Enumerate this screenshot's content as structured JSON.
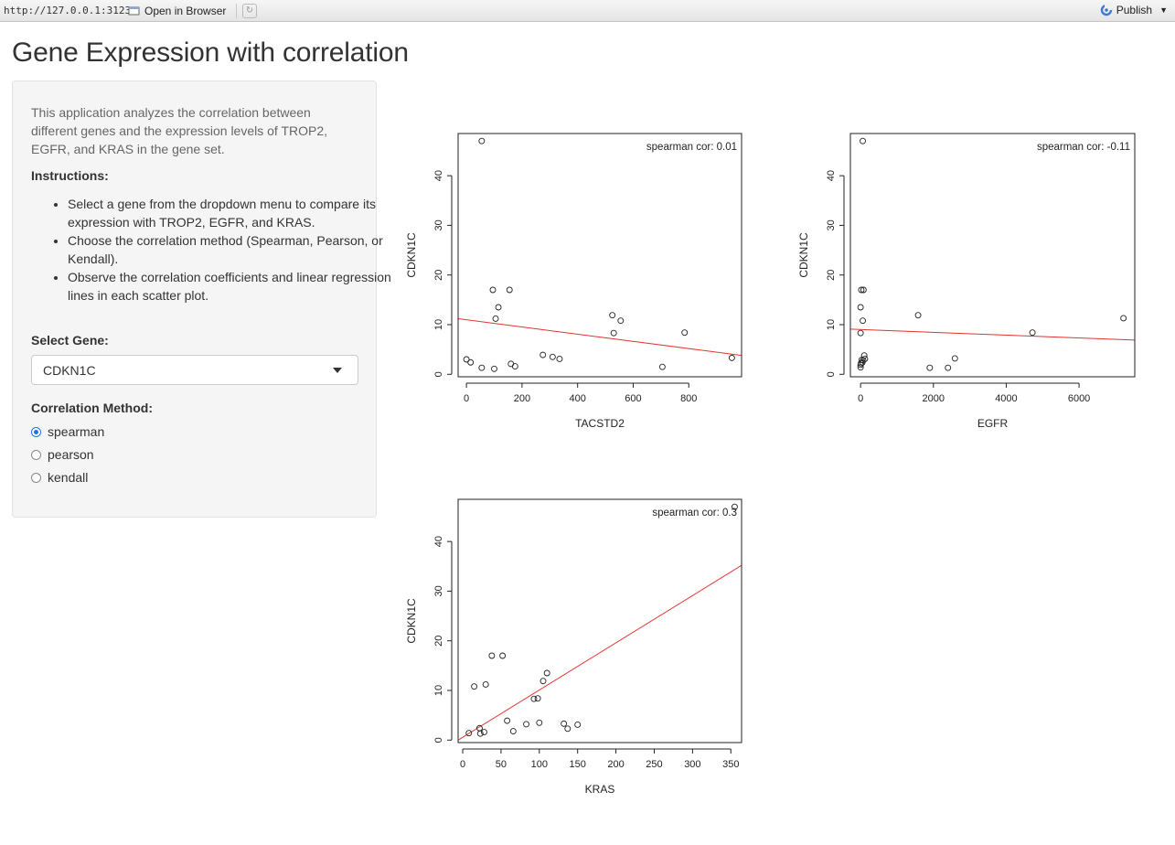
{
  "browser": {
    "url": "http://127.0.0.1:3123",
    "open_label": "Open in Browser",
    "publish_label": "Publish"
  },
  "page": {
    "title": "Gene Expression with correlation"
  },
  "sidebar": {
    "description": "This application analyzes the correlation between different genes and the expression levels of TROP2, EGFR, and KRAS in the gene set.",
    "instructions_heading": "Instructions:",
    "instructions": [
      "Select a gene from the dropdown menu to compare its expression with TROP2, EGFR, and KRAS.",
      "Choose the correlation method (Spearman, Pearson, or Kendall).",
      "Observe the correlation coefficients and linear regression lines in each scatter plot."
    ],
    "gene_label": "Select Gene:",
    "gene_value": "CDKN1C",
    "method_label": "Correlation Method:",
    "methods": [
      {
        "label": "spearman",
        "selected": true
      },
      {
        "label": "pearson",
        "selected": false
      },
      {
        "label": "kendall",
        "selected": false
      }
    ]
  },
  "colors": {
    "regression_line": "#e3342f",
    "radio_accent": "#1a73e8"
  },
  "chart_data": [
    {
      "type": "scatter",
      "xlabel": "TACSTD2",
      "ylabel": "CDKN1C",
      "xlim": [
        -30,
        990
      ],
      "ylim": [
        -0.5,
        48.5
      ],
      "xticks": [
        0,
        200,
        400,
        600,
        800
      ],
      "yticks": [
        0,
        10,
        20,
        30,
        40
      ],
      "annotation": "spearman cor: 0.01",
      "points": [
        [
          55,
          47
        ],
        [
          95,
          17
        ],
        [
          155,
          17
        ],
        [
          115,
          13.5
        ],
        [
          105,
          11.2
        ],
        [
          525,
          11.9
        ],
        [
          555,
          10.8
        ],
        [
          530,
          8.3
        ],
        [
          785,
          8.4
        ],
        [
          275,
          3.9
        ],
        [
          310,
          3.5
        ],
        [
          335,
          3.1
        ],
        [
          955,
          3.3
        ],
        [
          0,
          3
        ],
        [
          15,
          2.4
        ],
        [
          160,
          2.1
        ],
        [
          175,
          1.6
        ],
        [
          55,
          1.3
        ],
        [
          100,
          1.1
        ],
        [
          705,
          1.5
        ]
      ],
      "line": [
        [
          -30,
          11.2
        ],
        [
          990,
          3.8
        ]
      ]
    },
    {
      "type": "scatter",
      "xlabel": "EGFR",
      "ylabel": "CDKN1C",
      "xlim": [
        -280,
        7530
      ],
      "ylim": [
        -0.5,
        48.5
      ],
      "xticks": [
        0,
        2000,
        4000,
        6000
      ],
      "yticks": [
        0,
        10,
        20,
        30,
        40
      ],
      "annotation": "spearman cor: -0.11",
      "points": [
        [
          60,
          47
        ],
        [
          20,
          17
        ],
        [
          80,
          17
        ],
        [
          0,
          13.5
        ],
        [
          60,
          10.8
        ],
        [
          0,
          8.3
        ],
        [
          1580,
          11.9
        ],
        [
          4720,
          8.4
        ],
        [
          7220,
          11.3
        ],
        [
          2590,
          3.2
        ],
        [
          100,
          3.8
        ],
        [
          30,
          2.9
        ],
        [
          120,
          3.1
        ],
        [
          50,
          2.4
        ],
        [
          0,
          1.9
        ],
        [
          0,
          1.4
        ],
        [
          1900,
          1.3
        ],
        [
          2400,
          1.3
        ],
        [
          70,
          2.8
        ],
        [
          10,
          2.2
        ]
      ],
      "line": [
        [
          -280,
          9.1
        ],
        [
          7530,
          6.9
        ]
      ]
    },
    {
      "type": "scatter",
      "xlabel": "KRAS",
      "ylabel": "CDKN1C",
      "xlim": [
        -6,
        364
      ],
      "ylim": [
        -0.5,
        48.5
      ],
      "xticks": [
        0,
        50,
        100,
        150,
        200,
        250,
        300,
        350
      ],
      "yticks": [
        0,
        10,
        20,
        30,
        40
      ],
      "annotation": "spearman cor: 0.3",
      "points": [
        [
          355,
          47
        ],
        [
          38,
          17
        ],
        [
          52,
          17
        ],
        [
          110,
          13.5
        ],
        [
          105,
          11.9
        ],
        [
          15,
          10.8
        ],
        [
          30,
          11.2
        ],
        [
          93,
          8.3
        ],
        [
          98,
          8.4
        ],
        [
          58,
          3.9
        ],
        [
          83,
          3.2
        ],
        [
          100,
          3.5
        ],
        [
          132,
          3.3
        ],
        [
          150,
          3.1
        ],
        [
          22,
          2.4
        ],
        [
          137,
          2.3
        ],
        [
          66,
          1.8
        ],
        [
          28,
          1.6
        ],
        [
          23,
          1.3
        ],
        [
          8,
          1.4
        ]
      ],
      "line": [
        [
          -6,
          0.0
        ],
        [
          364,
          35.2
        ]
      ]
    }
  ]
}
